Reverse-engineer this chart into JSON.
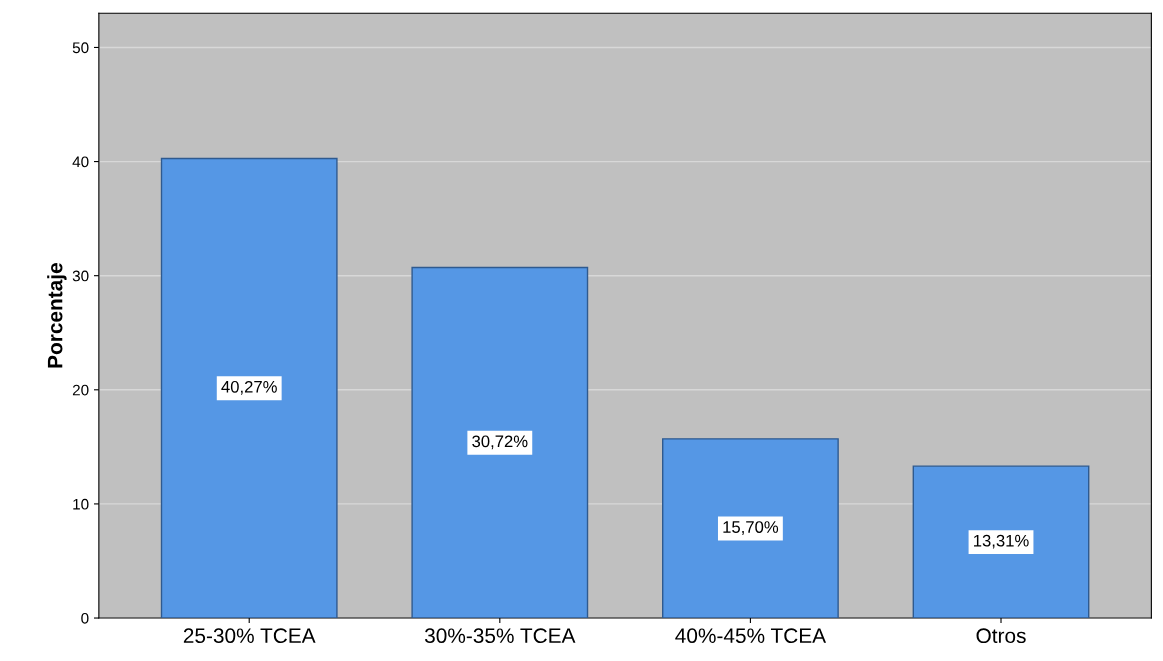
{
  "chart_data": {
    "type": "bar",
    "ylabel": "Porcentaje",
    "categories": [
      "25-30% TCEA",
      "30%-35% TCEA",
      "40%-45% TCEA",
      "Otros"
    ],
    "values": [
      40.27,
      30.72,
      15.7,
      13.31
    ],
    "value_labels": [
      "40,27%",
      "30,72%",
      "15,70%",
      "13,31%"
    ],
    "color": "#5597e5",
    "ylim": [
      0,
      53
    ],
    "yticks": [
      0,
      10,
      20,
      30,
      40,
      50
    ],
    "grid": "y"
  }
}
